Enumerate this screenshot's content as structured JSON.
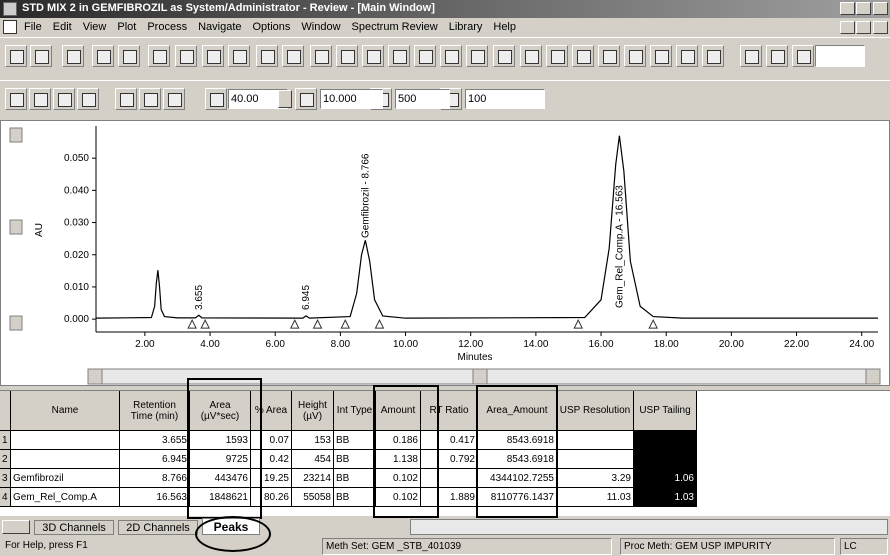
{
  "window": {
    "title": "STD MIX 2 in GEMFIBROZIL as System/Administrator - Review - [Main Window]"
  },
  "menu": [
    "File",
    "Edit",
    "View",
    "Plot",
    "Process",
    "Navigate",
    "Options",
    "Window",
    "Spectrum Review",
    "Library",
    "Help"
  ],
  "toolbar": {
    "fields": [
      "40.00",
      "10.000",
      "500",
      "100"
    ]
  },
  "chart_data": {
    "type": "line",
    "x_label": "Minutes",
    "y_label": "AU",
    "xlim": [
      0.5,
      24.5
    ],
    "ylim": [
      -0.004,
      0.06
    ],
    "xticks": [
      {
        "value": 2,
        "label": "2.00"
      },
      {
        "value": 4,
        "label": "4.00"
      },
      {
        "value": 6,
        "label": "6.00"
      },
      {
        "value": 8,
        "label": "8.00"
      },
      {
        "value": 10,
        "label": "10.00"
      },
      {
        "value": 12,
        "label": "12.00"
      },
      {
        "value": 14,
        "label": "14.00"
      },
      {
        "value": 16,
        "label": "16.00"
      },
      {
        "value": 18,
        "label": "18.00"
      },
      {
        "value": 20,
        "label": "20.00"
      },
      {
        "value": 22,
        "label": "22.00"
      },
      {
        "value": 24,
        "label": "24.00"
      }
    ],
    "yticks": [
      {
        "value": 0,
        "label": "0.000"
      },
      {
        "value": 0.01,
        "label": "0.010"
      },
      {
        "value": 0.02,
        "label": "0.020"
      },
      {
        "value": 0.03,
        "label": "0.030"
      },
      {
        "value": 0.04,
        "label": "0.040"
      },
      {
        "value": 0.05,
        "label": "0.050"
      }
    ],
    "series": [
      {
        "color": "#000000",
        "x": [
          0.5,
          2.2,
          2.3,
          2.35,
          2.4,
          2.45,
          2.5,
          2.6,
          3.0,
          3.55,
          3.655,
          3.75,
          6.85,
          6.945,
          7.05,
          8.3,
          8.5,
          8.65,
          8.766,
          8.9,
          9.05,
          9.3,
          10.0,
          15.5,
          16.0,
          16.25,
          16.45,
          16.563,
          16.7,
          16.9,
          17.2,
          17.6,
          18.5,
          24.5
        ],
        "values": [
          0.0003,
          0.0005,
          0.004,
          0.011,
          0.0152,
          0.01,
          0.003,
          0.0008,
          0.0004,
          0.0004,
          0.0012,
          0.0004,
          0.0003,
          0.001,
          0.0003,
          0.0008,
          0.008,
          0.02,
          0.0245,
          0.018,
          0.006,
          0.001,
          0.0003,
          0.0005,
          0.006,
          0.022,
          0.048,
          0.057,
          0.046,
          0.018,
          0.004,
          0.0008,
          0.0003,
          0.0003
        ]
      }
    ],
    "annotations": [
      {
        "text": "3.655",
        "x": 3.655
      },
      {
        "text": "6.945",
        "x": 6.945
      },
      {
        "text": "Gemfibrozil - 8.766",
        "x": 8.766
      },
      {
        "text": "Gem_Rel_Comp.A - 16.563",
        "x": 16.563
      }
    ],
    "markers_x": [
      3.45,
      3.85,
      6.6,
      7.3,
      8.15,
      9.2,
      15.3,
      17.6
    ]
  },
  "table": {
    "headers": [
      null,
      "Name",
      "Retention Time (min)",
      "Area (µV*sec)",
      "% Area",
      "Height (µV)",
      "Int Type",
      "Amount",
      "RT Ratio",
      "Area_Amount",
      "USP Resolution",
      "USP Tailing"
    ],
    "rows": [
      [
        1,
        null,
        3.655,
        1593,
        0.07,
        153,
        "BB",
        0.186,
        0.417,
        8543.6918,
        null,
        null
      ],
      [
        2,
        null,
        6.945,
        9725,
        0.42,
        454,
        "BB",
        1.138,
        0.792,
        8543.6918,
        null,
        null
      ],
      [
        3,
        "Gemfibrozil",
        8.766,
        443476,
        19.25,
        23214,
        "BB",
        0.102,
        null,
        4344102.7255,
        3.29,
        1.06
      ],
      [
        4,
        "Gem_Rel_Comp.A",
        16.563,
        1848621,
        80.26,
        55058,
        "BB",
        0.102,
        1.889,
        8110776.1437,
        11.03,
        1.03
      ]
    ]
  },
  "tabs": [
    "3D Channels",
    "2D Channels",
    "Peaks"
  ],
  "status": [
    "For Help, press F1",
    "Meth Set: GEM _STB_401039",
    "Proc Meth: GEM USP IMPURITY",
    "LC"
  ]
}
